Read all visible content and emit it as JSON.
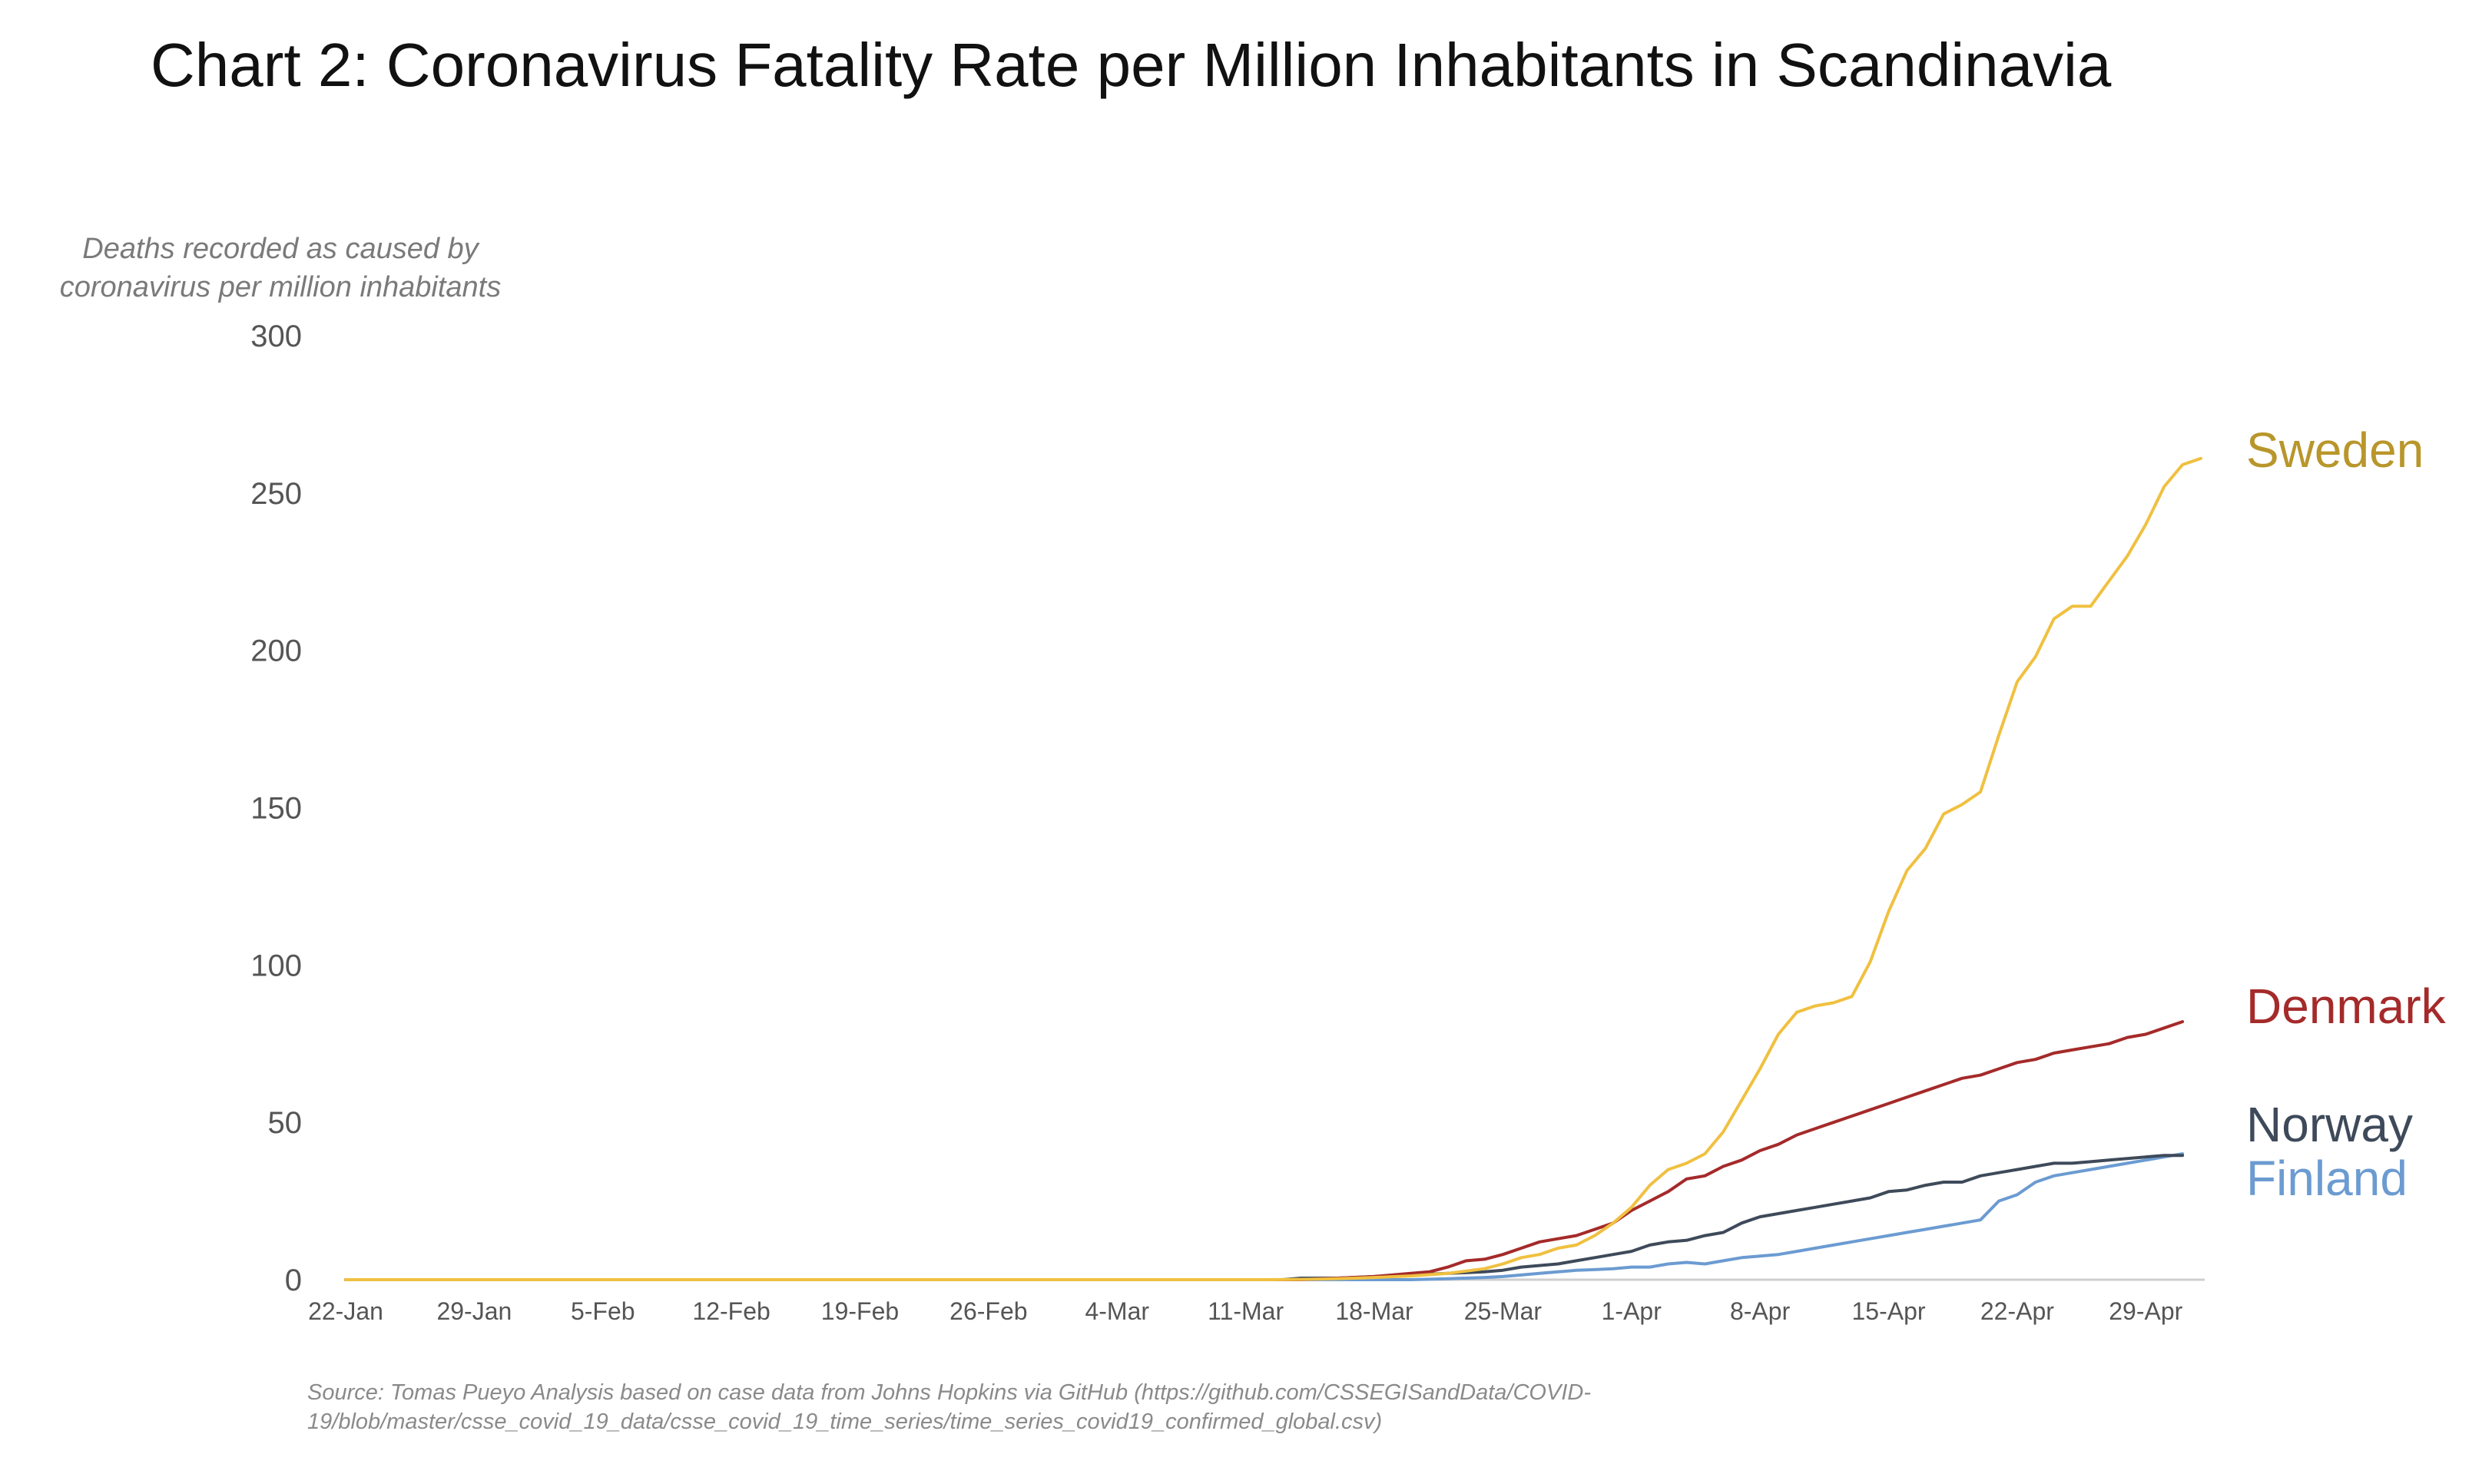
{
  "chart_data": {
    "type": "line",
    "title": "Chart 2: Coronavirus Fatality Rate per Million Inhabitants in Scandinavia",
    "ylabel_lines": [
      "Deaths recorded as caused by",
      "coronavirus per million inhabitants"
    ],
    "ylim": [
      0,
      300
    ],
    "yticks": [
      "0",
      "50",
      "100",
      "150",
      "200",
      "250",
      "300"
    ],
    "ytick_values": [
      0,
      50,
      100,
      150,
      200,
      250,
      300
    ],
    "xlim": [
      0,
      101
    ],
    "xticks": [
      "22-Jan",
      "29-Jan",
      "5-Feb",
      "12-Feb",
      "19-Feb",
      "26-Feb",
      "4-Mar",
      "11-Mar",
      "18-Mar",
      "25-Mar",
      "1-Apr",
      "8-Apr",
      "15-Apr",
      "22-Apr",
      "29-Apr"
    ],
    "xtick_values": [
      0,
      7,
      14,
      21,
      28,
      35,
      42,
      49,
      56,
      63,
      70,
      77,
      84,
      91,
      98
    ],
    "series": [
      {
        "name": "Sweden",
        "color": "#f0c040",
        "label_color": "#b8962a",
        "points": [
          [
            0,
            0
          ],
          [
            50,
            0
          ],
          [
            52,
            0.1
          ],
          [
            54,
            0.3
          ],
          [
            56,
            0.7
          ],
          [
            58,
            1.2
          ],
          [
            60,
            2
          ],
          [
            62,
            3.5
          ],
          [
            63,
            5
          ],
          [
            64,
            7
          ],
          [
            65,
            8
          ],
          [
            66,
            10
          ],
          [
            67,
            11
          ],
          [
            68,
            14
          ],
          [
            69,
            18
          ],
          [
            70,
            23
          ],
          [
            71,
            30
          ],
          [
            72,
            35
          ],
          [
            73,
            37
          ],
          [
            74,
            40
          ],
          [
            75,
            47
          ],
          [
            76,
            57
          ],
          [
            77,
            67
          ],
          [
            78,
            78
          ],
          [
            79,
            85
          ],
          [
            80,
            87
          ],
          [
            81,
            88
          ],
          [
            82,
            90
          ],
          [
            83,
            101
          ],
          [
            84,
            117
          ],
          [
            85,
            130
          ],
          [
            86,
            137
          ],
          [
            87,
            148
          ],
          [
            88,
            151
          ],
          [
            89,
            155
          ],
          [
            90,
            173
          ],
          [
            91,
            190
          ],
          [
            92,
            198
          ],
          [
            93,
            210
          ],
          [
            94,
            214
          ],
          [
            95,
            214
          ],
          [
            96,
            222
          ],
          [
            97,
            230
          ],
          [
            98,
            240
          ],
          [
            99,
            252
          ],
          [
            100,
            259
          ],
          [
            101,
            261
          ]
        ]
      },
      {
        "name": "Denmark",
        "color": "#a52a2a",
        "label_color": "#a52a2a",
        "points": [
          [
            0,
            0
          ],
          [
            52,
            0
          ],
          [
            54,
            0.5
          ],
          [
            56,
            1
          ],
          [
            58,
            2
          ],
          [
            59,
            2.5
          ],
          [
            60,
            4
          ],
          [
            61,
            6
          ],
          [
            62,
            6.5
          ],
          [
            63,
            8
          ],
          [
            64,
            10
          ],
          [
            65,
            12
          ],
          [
            66,
            13
          ],
          [
            67,
            14
          ],
          [
            68,
            16
          ],
          [
            69,
            18
          ],
          [
            70,
            22
          ],
          [
            71,
            25
          ],
          [
            72,
            28
          ],
          [
            73,
            32
          ],
          [
            74,
            33
          ],
          [
            75,
            36
          ],
          [
            76,
            38
          ],
          [
            77,
            41
          ],
          [
            78,
            43
          ],
          [
            79,
            46
          ],
          [
            80,
            48
          ],
          [
            81,
            50
          ],
          [
            82,
            52
          ],
          [
            83,
            54
          ],
          [
            84,
            56
          ],
          [
            85,
            58
          ],
          [
            86,
            60
          ],
          [
            87,
            62
          ],
          [
            88,
            64
          ],
          [
            89,
            65
          ],
          [
            90,
            67
          ],
          [
            91,
            69
          ],
          [
            92,
            70
          ],
          [
            93,
            72
          ],
          [
            94,
            73
          ],
          [
            95,
            74
          ],
          [
            96,
            75
          ],
          [
            97,
            77
          ],
          [
            98,
            78
          ],
          [
            99,
            80
          ],
          [
            100,
            82
          ]
        ]
      },
      {
        "name": "Norway",
        "color": "#3e4a5a",
        "label_color": "#3e4a5a",
        "points": [
          [
            0,
            0
          ],
          [
            51,
            0
          ],
          [
            52,
            0.5
          ],
          [
            54,
            0.5
          ],
          [
            56,
            1
          ],
          [
            58,
            1.5
          ],
          [
            60,
            2
          ],
          [
            62,
            2.5
          ],
          [
            63,
            3
          ],
          [
            64,
            4
          ],
          [
            66,
            5
          ],
          [
            67,
            6
          ],
          [
            68,
            7
          ],
          [
            69,
            8
          ],
          [
            70,
            9
          ],
          [
            71,
            11
          ],
          [
            72,
            12
          ],
          [
            73,
            12.5
          ],
          [
            74,
            14
          ],
          [
            75,
            15
          ],
          [
            76,
            18
          ],
          [
            77,
            20
          ],
          [
            78,
            21
          ],
          [
            79,
            22
          ],
          [
            80,
            23
          ],
          [
            81,
            24
          ],
          [
            82,
            25
          ],
          [
            83,
            26
          ],
          [
            84,
            28
          ],
          [
            85,
            28.5
          ],
          [
            86,
            30
          ],
          [
            87,
            31
          ],
          [
            88,
            31
          ],
          [
            89,
            33
          ],
          [
            90,
            34
          ],
          [
            91,
            35
          ],
          [
            92,
            36
          ],
          [
            93,
            37
          ],
          [
            94,
            37
          ],
          [
            95,
            37.5
          ],
          [
            96,
            38
          ],
          [
            97,
            38.5
          ],
          [
            98,
            39
          ],
          [
            99,
            39.5
          ],
          [
            100,
            39.5
          ]
        ]
      },
      {
        "name": "Finland",
        "color": "#6b9bd1",
        "label_color": "#6b9bd1",
        "points": [
          [
            0,
            0
          ],
          [
            58,
            0
          ],
          [
            60,
            0.3
          ],
          [
            62,
            0.7
          ],
          [
            63,
            1
          ],
          [
            64,
            1.5
          ],
          [
            65,
            2
          ],
          [
            66,
            2.5
          ],
          [
            67,
            3
          ],
          [
            68,
            3.2
          ],
          [
            69,
            3.5
          ],
          [
            70,
            4
          ],
          [
            71,
            4
          ],
          [
            72,
            5
          ],
          [
            73,
            5.5
          ],
          [
            74,
            5
          ],
          [
            75,
            6
          ],
          [
            76,
            7
          ],
          [
            77,
            7.5
          ],
          [
            78,
            8
          ],
          [
            79,
            9
          ],
          [
            80,
            10
          ],
          [
            81,
            11
          ],
          [
            82,
            12
          ],
          [
            83,
            13
          ],
          [
            84,
            14
          ],
          [
            85,
            15
          ],
          [
            86,
            16
          ],
          [
            87,
            17
          ],
          [
            88,
            18
          ],
          [
            89,
            19
          ],
          [
            90,
            25
          ],
          [
            91,
            27
          ],
          [
            92,
            31
          ],
          [
            93,
            33
          ],
          [
            94,
            34
          ],
          [
            95,
            35
          ],
          [
            96,
            36
          ],
          [
            97,
            37
          ],
          [
            98,
            38
          ],
          [
            99,
            39
          ],
          [
            100,
            40
          ]
        ]
      }
    ],
    "source_lines": [
      "Source: Tomas Pueyo Analysis based on case data from Johns Hopkins via GitHub (https://github.com/CSSEGISandData/COVID-",
      "19/blob/master/csse_covid_19_data/csse_covid_19_time_series/time_series_covid19_confirmed_global.csv)"
    ]
  }
}
